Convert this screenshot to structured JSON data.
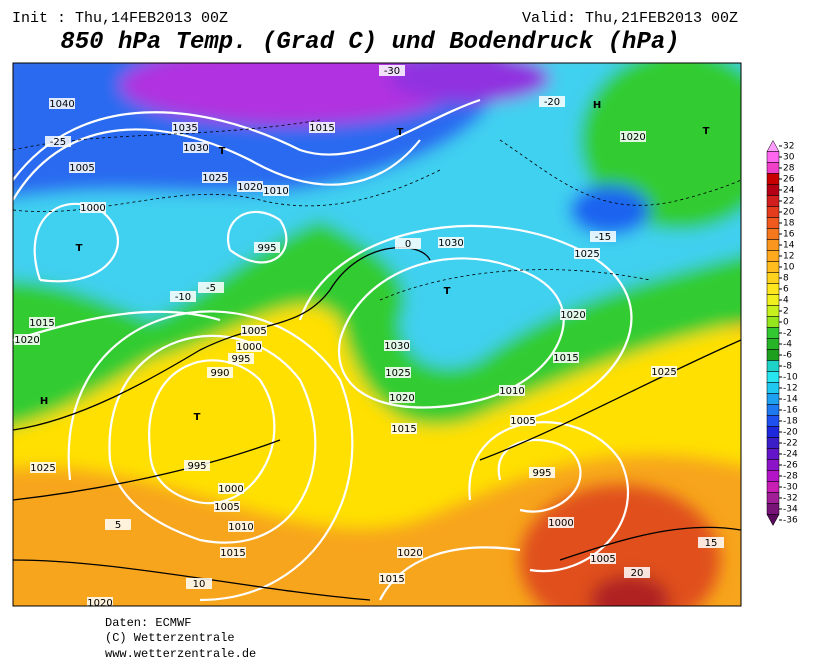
{
  "header": {
    "init": "Init : Thu,14FEB2013 00Z",
    "valid": "Valid: Thu,21FEB2013 00Z",
    "title": "850 hPa Temp. (Grad C) und Bodendruck (hPa)"
  },
  "map": {
    "labels": [
      "H",
      "H",
      "T",
      "T",
      "T",
      "T",
      "T",
      "T",
      "1040",
      "1035",
      "1030",
      "1025",
      "1020",
      "1015",
      "1010",
      "1005",
      "1000",
      "995",
      "-25",
      "-20",
      "-15",
      "-10",
      "-5",
      "0",
      "5",
      "10",
      "15",
      "20",
      "-30",
      "1030",
      "1025",
      "1020",
      "1015",
      "990",
      "995",
      "1000",
      "1005",
      "995",
      "1000",
      "1005",
      "1010",
      "1015",
      "1020",
      "1025",
      "1020",
      "1015",
      "1020",
      "1015",
      "995",
      "1000",
      "1005",
      "1025",
      "1020",
      "1020",
      "1015",
      "1025",
      "1030",
      "1010",
      "1005"
    ]
  },
  "colorbar": {
    "ticks": [
      32,
      30,
      28,
      26,
      24,
      22,
      20,
      18,
      16,
      14,
      12,
      10,
      8,
      6,
      4,
      2,
      0,
      -2,
      -4,
      -6,
      -8,
      -10,
      -12,
      -14,
      -16,
      -18,
      -20,
      -22,
      -24,
      -26,
      -28,
      -30,
      -32,
      -34,
      -36
    ],
    "colors": [
      "#ff9cff",
      "#ff66f0",
      "#f040c8",
      "#c80000",
      "#b40014",
      "#d21e1e",
      "#e63c1e",
      "#f05a1e",
      "#f5781e",
      "#fa961e",
      "#ffaa1e",
      "#ffbe1e",
      "#ffd21e",
      "#ffe61e",
      "#f0f01e",
      "#c8f01e",
      "#96e61e",
      "#32c832",
      "#28b428",
      "#1ea01e",
      "#1ed2c8",
      "#28e6f0",
      "#1ec8f0",
      "#1ea0f0",
      "#1e78f0",
      "#1e50f0",
      "#1e28dc",
      "#3c1ec8",
      "#6414c8",
      "#8c14c8",
      "#b414c8",
      "#c81eb4",
      "#a01e96",
      "#781478",
      "#5a0a5a"
    ]
  },
  "footer": {
    "source": "Daten: ECMWF",
    "copyright": "(C) Wetterzentrale",
    "url": "www.wetterzentrale.de"
  }
}
